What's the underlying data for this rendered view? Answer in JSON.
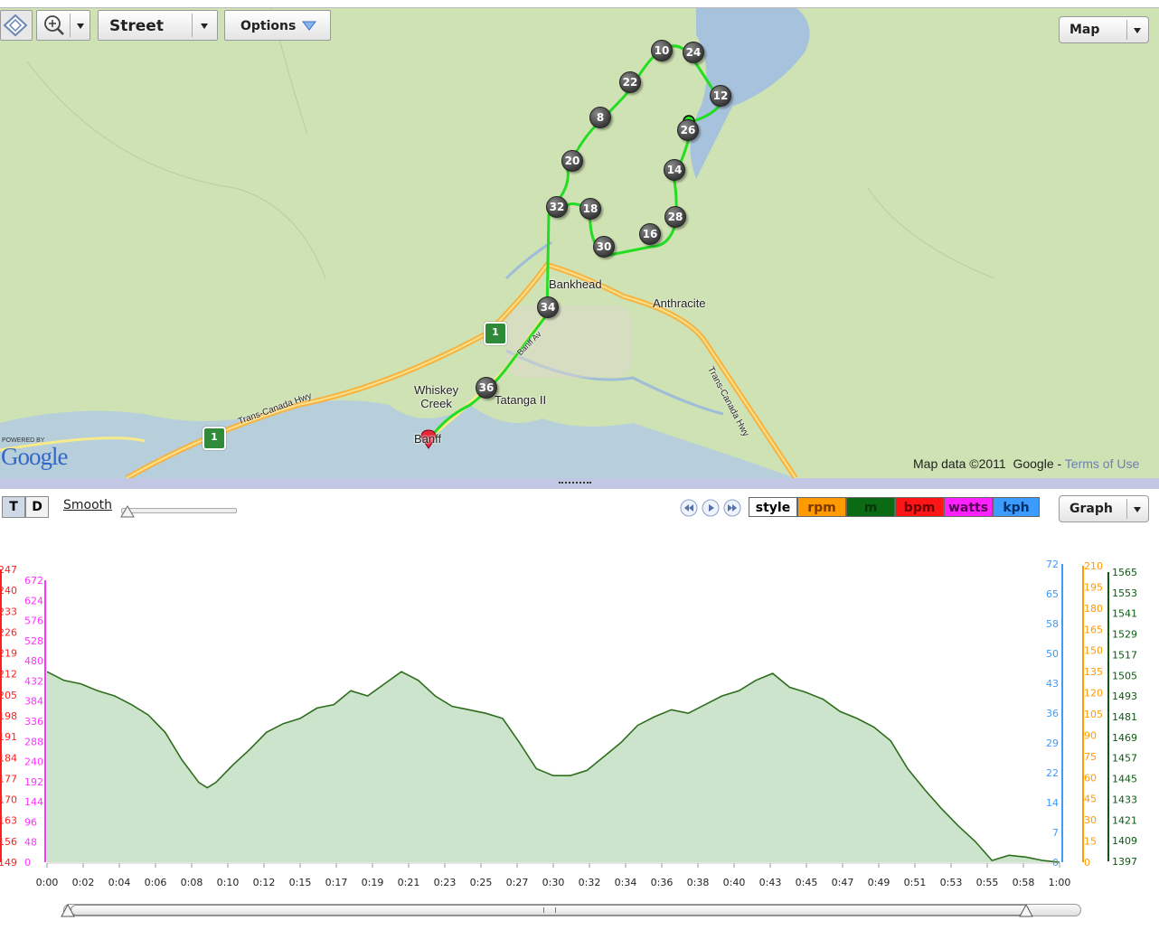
{
  "toolbar": {
    "map_type": "Street",
    "options_label": "Options",
    "view_label": "Map"
  },
  "map": {
    "labels": {
      "bankhead": "Bankhead",
      "anthracite": "Anthracite",
      "whiskey_creek": "Whiskey\nCreek",
      "tatanga": "Tatanga II",
      "banff": "Banff",
      "tch_west": "Trans-Canada Hwy",
      "tch_east": "Trans-Canada Hwy",
      "banff_ave": "Banff Av"
    },
    "markers": [
      "10",
      "24",
      "22",
      "12",
      "8",
      "26",
      "20",
      "14",
      "32",
      "18",
      "28",
      "16",
      "30",
      "34",
      "36"
    ],
    "powered_by": "POWERED BY",
    "google_logo": "Google",
    "attribution": "Map data ©2011  Google - ",
    "terms_link": "Terms of Use",
    "colors": {
      "route": "#22dd22",
      "highway": "#f5b342",
      "water": "#a7c2dc",
      "land": "#cfe2b3"
    }
  },
  "graph_controls": {
    "toggle_t": "T",
    "toggle_d": "D",
    "smooth_label": "Smooth",
    "series_buttons": [
      {
        "label": "style",
        "bg": "#ffffff",
        "fg": "#000000"
      },
      {
        "label": "rpm",
        "bg": "#ff9a00",
        "fg": "#7a3a00"
      },
      {
        "label": "m",
        "bg": "#0b6b14",
        "fg": "#063508"
      },
      {
        "label": "bpm",
        "bg": "#ff1515",
        "fg": "#6a0000"
      },
      {
        "label": "watts",
        "bg": "#ff22ff",
        "fg": "#550055"
      },
      {
        "label": "kph",
        "bg": "#3b9bff",
        "fg": "#00306a"
      }
    ],
    "view_label": "Graph"
  },
  "chart_data": {
    "type": "area",
    "x_ticks": [
      "0:00",
      "0:02",
      "0:04",
      "0:06",
      "0:08",
      "0:10",
      "0:12",
      "0:15",
      "0:17",
      "0:19",
      "0:21",
      "0:23",
      "0:25",
      "0:27",
      "0:30",
      "0:32",
      "0:34",
      "0:36",
      "0:38",
      "0:40",
      "0:43",
      "0:45",
      "0:47",
      "0:49",
      "0:51",
      "0:53",
      "0:55",
      "0:58",
      "1:00"
    ],
    "x_minutes": [
      0,
      1,
      2,
      3,
      4,
      5,
      6,
      7,
      8,
      9,
      9.5,
      10,
      11,
      12,
      13,
      14,
      15,
      16,
      17,
      18,
      19,
      20,
      21,
      22,
      23,
      24,
      25,
      26,
      27,
      28,
      29,
      30,
      31,
      32,
      33,
      34,
      35,
      36,
      37,
      38,
      39,
      40,
      41,
      42,
      43,
      44,
      45,
      46,
      47,
      48,
      49,
      50,
      51,
      52,
      53,
      54,
      55,
      56,
      57,
      58,
      59,
      60
    ],
    "series": [
      {
        "name": "m",
        "color": "#2d6e1c",
        "fill": "#cce3cc",
        "values": [
          1507,
          1502,
          1500,
          1496,
          1493,
          1488,
          1482,
          1472,
          1456,
          1443,
          1440,
          1443,
          1453,
          1462,
          1472,
          1477,
          1480,
          1486,
          1488,
          1496,
          1493,
          1500,
          1507,
          1502,
          1493,
          1487,
          1485,
          1483,
          1480,
          1466,
          1451,
          1447,
          1447,
          1450,
          1458,
          1466,
          1476,
          1481,
          1485,
          1483,
          1488,
          1493,
          1496,
          1502,
          1506,
          1498,
          1495,
          1491,
          1484,
          1480,
          1475,
          1467,
          1451,
          1439,
          1428,
          1418,
          1409,
          1398,
          1401,
          1400,
          1398,
          1397
        ]
      }
    ],
    "axes": {
      "m": {
        "min": 1397,
        "max": 1565,
        "ticks": [
          "1565",
          "1553",
          "1541",
          "1529",
          "1517",
          "1505",
          "1493",
          "1481",
          "1469",
          "1457",
          "1445",
          "1433",
          "1421",
          "1409",
          "1397"
        ]
      },
      "rpm": {
        "ticks": [
          "210",
          "195",
          "180",
          "165",
          "150",
          "135",
          "120",
          "105",
          "90",
          "75",
          "60",
          "45",
          "30",
          "15",
          "0"
        ]
      },
      "kph": {
        "ticks": [
          "72",
          "65",
          "58",
          "50",
          "43",
          "36",
          "29",
          "22",
          "14",
          "7",
          "0"
        ]
      },
      "watts": {
        "ticks": [
          "672",
          "624",
          "576",
          "528",
          "480",
          "432",
          "384",
          "336",
          "288",
          "240",
          "192",
          "144",
          "96",
          "48",
          "0"
        ]
      },
      "bpm": {
        "ticks": [
          "247",
          "240",
          "233",
          "226",
          "219",
          "212",
          "205",
          "198",
          "191",
          "184",
          "177",
          "170",
          "163",
          "156",
          "149"
        ]
      }
    }
  }
}
